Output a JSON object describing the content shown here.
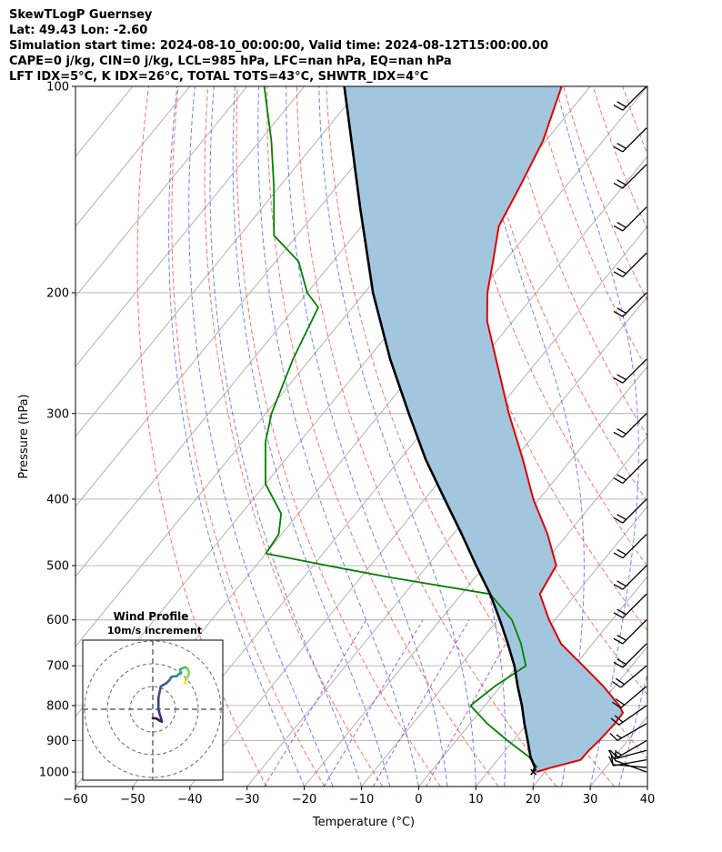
{
  "header": {
    "line1": "SkewTLogP Guernsey",
    "line2": "Lat: 49.43   Lon: -2.60",
    "line3": "Simulation start time: 2024-08-10_00:00:00, Valid time: 2024-08-12T15:00:00.00",
    "line4": "CAPE=0 j/kg, CIN=0 j/kg, LCL=985 hPa, LFC=nan hPa, EQ=nan hPa",
    "line5": "LFT IDX=5°C, K IDX=26°C, TOTAL TOTS=43°C, SHWTR_IDX=4°C"
  },
  "chart_data": {
    "type": "line",
    "subtype": "skew-t log-p",
    "xlabel": "Temperature (°C)",
    "ylabel": "Pressure (hPa)",
    "xlim": [
      -60,
      40
    ],
    "ylim": [
      1050,
      100
    ],
    "y_scale": "log",
    "x_ticks": [
      -60,
      -50,
      -40,
      -30,
      -20,
      -10,
      0,
      10,
      20,
      30,
      40
    ],
    "y_ticks": [
      100,
      200,
      300,
      400,
      500,
      600,
      700,
      800,
      900,
      1000
    ],
    "grid": true,
    "colors": {
      "temperature": "#e00000",
      "dewpoint": "#008000",
      "parcel": "#000000",
      "cape_fill": "#a3c6df",
      "dry_adiabat": "#ff5555",
      "moist_adiabat": "#4455ff",
      "mixing_ratio": "#9933cc",
      "isotherm": "#aaaaaa"
    },
    "series": [
      {
        "key": "temperature",
        "pressure": [
          1000,
          985,
          960,
          930,
          900,
          850,
          820,
          800,
          750,
          700,
          650,
          600,
          550,
          500,
          450,
          400,
          350,
          300,
          250,
          220,
          200,
          180,
          160,
          140,
          120,
          100
        ],
        "temperature": [
          18.5,
          20.5,
          24.5,
          24.6,
          25.0,
          25.3,
          25.2,
          23.5,
          18.0,
          11.5,
          4.5,
          -1.0,
          -6.3,
          -7.5,
          -13.5,
          -21.0,
          -28.5,
          -37.5,
          -47.5,
          -54.5,
          -58.5,
          -62.0,
          -66.0,
          -68.0,
          -70.5,
          -75.0
        ]
      },
      {
        "key": "dewpoint",
        "pressure": [
          985,
          950,
          900,
          850,
          800,
          750,
          700,
          650,
          600,
          550,
          520,
          500,
          480,
          450,
          420,
          380,
          330,
          300,
          250,
          210,
          200,
          180,
          165,
          140,
          120,
          100
        ],
        "temperature": [
          18.0,
          15.0,
          9.0,
          3.0,
          -2.5,
          -1.0,
          1.5,
          -2.5,
          -7.5,
          -15.0,
          -35.0,
          -47.5,
          -60.0,
          -60.5,
          -63.0,
          -70.0,
          -76.0,
          -79.0,
          -83.0,
          -86.0,
          -90.0,
          -96.0,
          -104.0,
          -111.0,
          -118.0,
          -127.0
        ]
      },
      {
        "key": "parcel",
        "pressure": [
          1000,
          985,
          950,
          900,
          850,
          800,
          750,
          700,
          650,
          600,
          550,
          500,
          450,
          400,
          350,
          300,
          250,
          200,
          150,
          120,
          100
        ],
        "temperature": [
          18.0,
          17.6,
          15.3,
          12.5,
          9.5,
          6.5,
          3.0,
          -0.5,
          -4.8,
          -9.6,
          -15.0,
          -21.5,
          -28.5,
          -36.5,
          -45.5,
          -55.0,
          -66.0,
          -78.5,
          -93.0,
          -104.0,
          -113.0
        ]
      }
    ],
    "inset": {
      "title": "Wind Profile",
      "subtitle": "10m/s increment",
      "type": "hodograph",
      "ring_increment_ms": 10,
      "u": [
        0,
        1.5,
        3,
        4,
        3.5,
        3,
        2.5,
        2.5,
        3.5,
        6,
        7,
        7.5,
        8,
        9,
        10.5,
        11,
        11.5,
        12,
        12.5,
        12,
        13,
        14.5,
        15,
        15.5,
        16,
        15.5,
        14.5,
        14.5,
        14.5,
        14.5,
        14
      ],
      "v": [
        -4,
        -4,
        -5,
        -5.5,
        -3.5,
        -2,
        0,
        5,
        10,
        11.5,
        12.5,
        13,
        14,
        14.5,
        14.5,
        15,
        15.5,
        15.5,
        16,
        17.5,
        18,
        18.5,
        18,
        17.5,
        16,
        14.5,
        13,
        12.5,
        12,
        11.5,
        11.5
      ]
    },
    "wind_barbs": {
      "pressure": [
        1000,
        985,
        960,
        930,
        900,
        850,
        800,
        750,
        700,
        650,
        600,
        550,
        500,
        450,
        400,
        350,
        300,
        250,
        200,
        175,
        150,
        130,
        115,
        100
      ],
      "speed_kt": [
        10,
        12,
        12,
        15,
        15,
        15,
        20,
        20,
        20,
        20,
        20,
        20,
        20,
        20,
        20,
        20,
        20,
        20,
        20,
        20,
        20,
        20,
        20,
        20
      ],
      "direction_deg": [
        290,
        275,
        260,
        255,
        240,
        240,
        235,
        230,
        230,
        225,
        225,
        225,
        225,
        225,
        225,
        225,
        225,
        225,
        225,
        225,
        225,
        225,
        225,
        225
      ]
    }
  }
}
